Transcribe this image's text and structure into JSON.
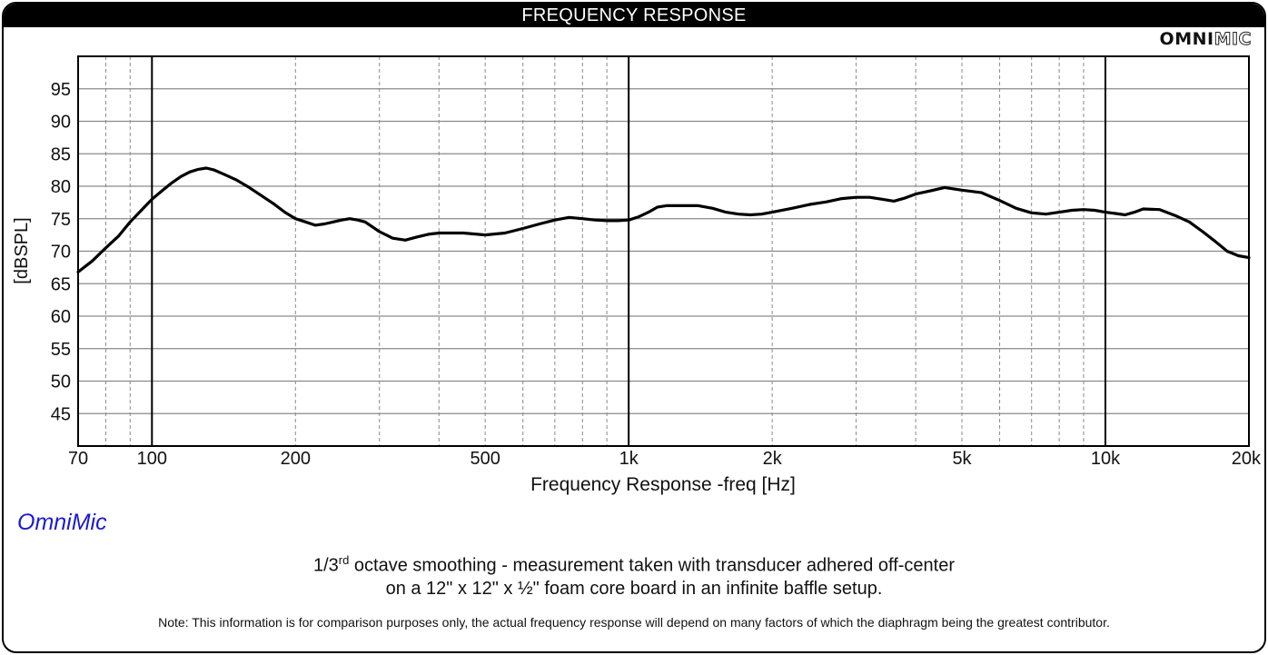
{
  "header": {
    "title": "FREQUENCY RESPONSE"
  },
  "logo": {
    "part1": "OMNI",
    "part2": "MIC"
  },
  "watermark": {
    "label": "OmniMic"
  },
  "caption": {
    "line1_pre": "1/3",
    "line1_sup": "rd",
    "line1_post": " octave smoothing - measurement taken with transducer adhered off-center",
    "line2": "on a 12\" x 12\" x ½\" foam core board in an infinite baffle setup."
  },
  "note": "Note: This information is for comparison purposes only, the actual frequency response will depend on many factors of which the diaphragm being the greatest contributor.",
  "colors": {
    "curve": "#000000",
    "grid": "#888888",
    "accent": "#1a1ad6"
  },
  "chart_data": {
    "type": "line",
    "title": "FREQUENCY RESPONSE",
    "xlabel": "Frequency Response -freq [Hz]",
    "ylabel": "[dBSPL]",
    "xscale": "log",
    "xlim": [
      70,
      20000
    ],
    "ylim": [
      40,
      100
    ],
    "x_ticks": [
      {
        "value": 70,
        "label": "70"
      },
      {
        "value": 100,
        "label": "100"
      },
      {
        "value": 200,
        "label": "200"
      },
      {
        "value": 500,
        "label": "500"
      },
      {
        "value": 1000,
        "label": "1k"
      },
      {
        "value": 2000,
        "label": "2k"
      },
      {
        "value": 5000,
        "label": "5k"
      },
      {
        "value": 10000,
        "label": "10k"
      },
      {
        "value": 20000,
        "label": "20k"
      }
    ],
    "y_ticks": [
      95,
      90,
      85,
      80,
      75,
      70,
      65,
      60,
      55,
      50,
      45
    ],
    "major_x_lines": [
      100,
      1000,
      10000
    ],
    "minor_x_lines": [
      80,
      90,
      200,
      300,
      400,
      500,
      600,
      700,
      800,
      900,
      2000,
      3000,
      4000,
      5000,
      6000,
      7000,
      8000,
      9000
    ],
    "grid": true,
    "series": [
      {
        "name": "Frequency Response",
        "x": [
          70,
          75,
          80,
          85,
          90,
          95,
          100,
          105,
          110,
          115,
          120,
          125,
          130,
          135,
          140,
          150,
          160,
          170,
          180,
          190,
          200,
          210,
          220,
          230,
          240,
          250,
          260,
          270,
          280,
          300,
          320,
          340,
          360,
          380,
          400,
          450,
          500,
          550,
          600,
          650,
          700,
          750,
          800,
          850,
          900,
          950,
          1000,
          1050,
          1100,
          1150,
          1200,
          1300,
          1400,
          1500,
          1600,
          1700,
          1800,
          1900,
          2000,
          2200,
          2400,
          2600,
          2800,
          3000,
          3200,
          3400,
          3600,
          3800,
          4000,
          4300,
          4600,
          5000,
          5500,
          6000,
          6500,
          7000,
          7500,
          8000,
          8500,
          9000,
          9500,
          10000,
          10500,
          11000,
          11500,
          12000,
          13000,
          14000,
          15000,
          16000,
          17000,
          18000,
          19000,
          20000
        ],
        "values": [
          66.8,
          68.5,
          70.5,
          72.3,
          74.5,
          76.3,
          78.0,
          79.3,
          80.5,
          81.5,
          82.2,
          82.6,
          82.8,
          82.5,
          82.0,
          81.0,
          79.8,
          78.5,
          77.3,
          76.0,
          75.0,
          74.5,
          74.0,
          74.2,
          74.5,
          74.8,
          75.0,
          74.8,
          74.5,
          73.0,
          72.0,
          71.7,
          72.2,
          72.6,
          72.8,
          72.8,
          72.5,
          72.8,
          73.5,
          74.2,
          74.8,
          75.2,
          75.0,
          74.8,
          74.7,
          74.7,
          74.8,
          75.3,
          76.0,
          76.8,
          77.0,
          77.0,
          77.0,
          76.6,
          76.0,
          75.7,
          75.6,
          75.7,
          76.0,
          76.6,
          77.2,
          77.6,
          78.1,
          78.3,
          78.3,
          78.0,
          77.7,
          78.2,
          78.8,
          79.3,
          79.8,
          79.4,
          79.0,
          77.8,
          76.6,
          75.9,
          75.7,
          76.0,
          76.3,
          76.4,
          76.3,
          76.0,
          75.8,
          75.6,
          76.0,
          76.5,
          76.4,
          75.5,
          74.5,
          73.0,
          71.5,
          70.0,
          69.3,
          69.0
        ]
      }
    ]
  }
}
